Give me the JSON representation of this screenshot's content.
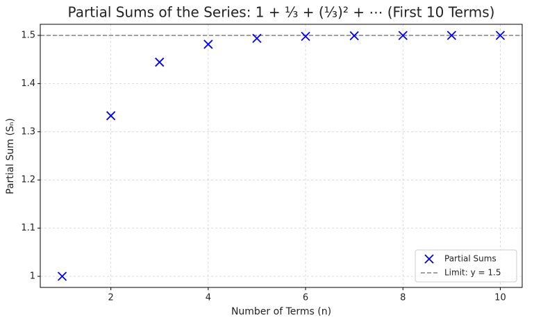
{
  "chart_data": {
    "type": "scatter",
    "title": "Partial Sums of the Series: 1 + ⅓ + (⅓)² + ⋯ (First 10 Terms)",
    "xlabel": "Number of Terms (n)",
    "ylabel": "Partial Sum (Sₙ)",
    "series": [
      {
        "name": "Partial Sums",
        "color": "#0000ee",
        "marker": "x",
        "x": [
          1,
          2,
          3,
          4,
          5,
          6,
          7,
          8,
          9,
          10
        ],
        "values": [
          1.0,
          1.3333,
          1.4444,
          1.4815,
          1.4938,
          1.4979,
          1.4993,
          1.4998,
          1.4999,
          1.5
        ]
      }
    ],
    "hline": {
      "value": 1.5,
      "label": "Limit: y = 1.5",
      "color": "#808080"
    },
    "xlim": [
      0.55,
      10.45
    ],
    "xticks": [
      2,
      4,
      6,
      8,
      10
    ],
    "ylim": [
      0.977,
      1.523
    ],
    "yticks": [
      1.0,
      1.1,
      1.2,
      1.3,
      1.4,
      1.5
    ],
    "grid": true,
    "legend": "lower right"
  }
}
